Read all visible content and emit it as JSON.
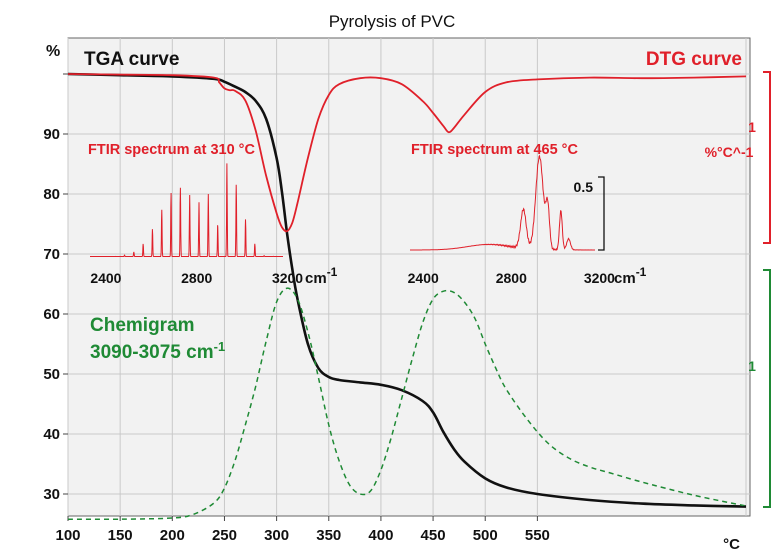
{
  "chart_data": {
    "type": "line",
    "title": "Pyrolysis of PVC",
    "xlabel": "°C",
    "ylabel": "%",
    "xlim": [
      100,
      760
    ],
    "ylim": [
      25,
      102
    ],
    "x_ticks": [
      "100",
      "150",
      "200",
      "250",
      "300",
      "350",
      "400",
      "450",
      "500",
      "550"
    ],
    "y_ticks": [
      "30",
      "40",
      "50",
      "60",
      "70",
      "80",
      "90"
    ],
    "grid": true,
    "colors": {
      "tga": "#111111",
      "dtg": "#e0202a",
      "chem": "#1f8a35",
      "inset": "#e0202a",
      "grid": "#c9c9c9",
      "plot_bg": "#f2f2f2"
    },
    "series": [
      {
        "name": "TGA curve",
        "style": "solid",
        "x": [
          100,
          150,
          200,
          240,
          250,
          260,
          270,
          280,
          290,
          300,
          305,
          310,
          315,
          320,
          330,
          340,
          350,
          360,
          380,
          400,
          420,
          440,
          450,
          460,
          470,
          480,
          500,
          520,
          550,
          600,
          650,
          700,
          750
        ],
        "y": [
          100,
          99.8,
          99.6,
          99.2,
          98.7,
          97.9,
          97,
          95.5,
          92.5,
          86,
          80.5,
          73.5,
          67.5,
          62.5,
          55,
          51,
          49.5,
          49,
          48.6,
          48.2,
          47.3,
          45.5,
          43.6,
          40.3,
          37.5,
          35.4,
          32.6,
          31.1,
          30,
          29,
          28.4,
          28.1,
          27.9
        ]
      },
      {
        "name": "DTG curve",
        "style": "solid",
        "x": [
          100,
          150,
          200,
          240,
          245,
          250,
          255,
          260,
          270,
          280,
          290,
          300,
          305,
          310,
          315,
          320,
          330,
          340,
          350,
          360,
          380,
          400,
          420,
          440,
          450,
          460,
          465,
          470,
          480,
          500,
          520,
          550,
          600,
          650,
          700,
          750
        ],
        "y": [
          100,
          99.9,
          99.8,
          99.4,
          98.6,
          97.6,
          97.3,
          97.2,
          95.6,
          90.5,
          83,
          76.8,
          74.5,
          73.8,
          75.2,
          78.5,
          86,
          92.5,
          96.5,
          98.3,
          99.3,
          99.3,
          98.3,
          95.5,
          93.5,
          91.3,
          90.3,
          91,
          93.2,
          97,
          98.6,
          99.1,
          99.4,
          99.3,
          99.4,
          99.6
        ]
      },
      {
        "name": "Chemigram",
        "style": "dashed",
        "x": [
          100,
          150,
          200,
          220,
          240,
          250,
          260,
          270,
          280,
          290,
          300,
          310,
          320,
          330,
          340,
          350,
          360,
          370,
          380,
          390,
          400,
          410,
          420,
          430,
          440,
          450,
          460,
          470,
          480,
          490,
          500,
          510,
          520,
          540,
          560,
          580,
          600,
          620,
          650,
          700,
          750
        ],
        "y": [
          25.8,
          25.8,
          26,
          26.6,
          28.5,
          31,
          35.5,
          41.5,
          48,
          55.5,
          62,
          64.3,
          62.5,
          57,
          49.5,
          41.5,
          35.5,
          31.5,
          30,
          30.5,
          34,
          39.5,
          46,
          52.5,
          58.5,
          62.5,
          63.8,
          63.6,
          62,
          59.3,
          55,
          51,
          47.5,
          42.5,
          38.5,
          36,
          34.5,
          33.5,
          32,
          29.8,
          28
        ]
      }
    ],
    "labels": {
      "tga": "TGA curve",
      "dtg": "DTG curve",
      "chem_line1": "Chemigram",
      "chem_line2": "3090-3075 cm",
      "chem_sup": "-1",
      "dtg_scale_value": "1",
      "dtg_scale_unit": "%°C^-1",
      "chem_scale_value": "1"
    },
    "insets": [
      {
        "title": "FTIR spectrum at 310 °C",
        "x_ticks": [
          "2400",
          "2800",
          "3200"
        ],
        "unit": "cm",
        "unit_sup": "-1",
        "xlim": [
          2330,
          3180
        ],
        "y_scale_label": ""
      },
      {
        "title": "FTIR spectrum at 465 °C",
        "x_ticks": [
          "2400",
          "2800",
          "3200"
        ],
        "unit": "cm",
        "unit_sup": "-1",
        "xlim": [
          2340,
          3180
        ],
        "y_scale_label": "0.5"
      }
    ]
  }
}
